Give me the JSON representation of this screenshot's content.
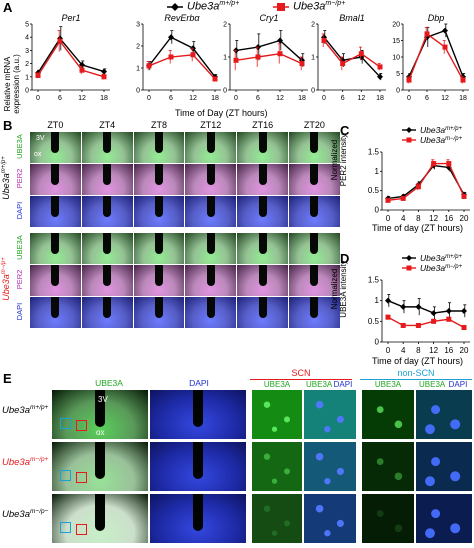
{
  "legend_top": {
    "items": [
      {
        "label": "Ube3a",
        "sup": "m+/p+",
        "color": "#000000",
        "marker": "diamond"
      },
      {
        "label": "Ube3a",
        "sup": "m−/p+",
        "color": "#e41a1c",
        "marker": "square"
      }
    ]
  },
  "panel_letters": {
    "A": "A",
    "B": "B",
    "C": "C",
    "D": "D",
    "E": "E"
  },
  "panel_a": {
    "ylabel_line1": "Relative mRNA",
    "ylabel_line2": "expression (a.u.)",
    "xlabel": "Time of Day (ZT hours)"
  },
  "panel_b": {
    "columns": [
      "ZT0",
      "ZT4",
      "ZT8",
      "ZT12",
      "ZT16",
      "ZT20"
    ],
    "row_labels": [
      "UBE3A",
      "PER2",
      "DAPI"
    ],
    "genotypes": [
      {
        "name": "Ube3a",
        "sup": "m+/p+",
        "color": "#000000"
      },
      {
        "name": "Ube3a",
        "sup": "m−/p+",
        "color": "#e41a1c"
      }
    ],
    "annot_3v": "3V",
    "annot_ox": "ox"
  },
  "panel_c": {
    "ylabel_line1": "Normalized",
    "ylabel_line2": "PER2 intensity",
    "xlabel": "Time of day (ZT hours)"
  },
  "panel_d": {
    "ylabel_line1": "Normalized",
    "ylabel_line2": "UBE3A intensity",
    "xlabel": "Time of day (ZT hours)"
  },
  "panel_e": {
    "col_headers": [
      "UBE3A",
      "DAPI"
    ],
    "group_scn": "SCN",
    "group_nonscn": "non-SCN",
    "sub_headers": [
      "UBE3A",
      "UBE3A",
      "DAPI",
      "UBE3A",
      "UBE3A",
      "DAPI"
    ],
    "rows": [
      {
        "name": "Ube3a",
        "sup": "m+/p+",
        "color": "#000000"
      },
      {
        "name": "Ube3a",
        "sup": "m−/p+",
        "color": "#e41a1c"
      },
      {
        "name": "Ube3a",
        "sup": "m−/p−",
        "color": "#000000"
      }
    ],
    "annot_3v": "3V",
    "annot_ox": "ox",
    "scn_color": "#e41a1c",
    "nonscn_color": "#1ba1d6"
  },
  "colors": {
    "wt": "#000000",
    "mut": "#e41a1c",
    "green": "#1fa51f",
    "magenta": "#b12ab1",
    "blue": "#1f2fd1"
  },
  "chart_data": [
    {
      "type": "line",
      "title": "Per1",
      "x": [
        0,
        6,
        12,
        18
      ],
      "ylim": [
        0,
        5
      ],
      "yticks": [
        0,
        1,
        2,
        3,
        4,
        5
      ],
      "series": [
        {
          "name": "Ube3a m+/p+",
          "values": [
            1.3,
            3.9,
            1.9,
            1.4
          ],
          "err": [
            0.2,
            0.9,
            0.3,
            0.2
          ]
        },
        {
          "name": "Ube3a m−/p+",
          "values": [
            1.1,
            3.7,
            1.5,
            1.0
          ],
          "err": [
            0.2,
            0.8,
            0.3,
            0.2
          ]
        }
      ]
    },
    {
      "type": "line",
      "title": "RevErbα",
      "x": [
        0,
        6,
        12,
        18
      ],
      "ylim": [
        0,
        3
      ],
      "yticks": [
        0,
        1,
        2,
        3
      ],
      "series": [
        {
          "name": "Ube3a m+/p+",
          "values": [
            1.1,
            2.4,
            1.9,
            0.6
          ],
          "err": [
            0.2,
            0.3,
            0.3,
            0.1
          ]
        },
        {
          "name": "Ube3a m−/p+",
          "values": [
            1.1,
            1.5,
            1.6,
            0.5
          ],
          "err": [
            0.2,
            0.3,
            0.3,
            0.1
          ]
        }
      ]
    },
    {
      "type": "line",
      "title": "Cry1",
      "x": [
        0,
        6,
        12,
        18
      ],
      "ylim": [
        0,
        2
      ],
      "yticks": [
        0,
        1,
        2
      ],
      "series": [
        {
          "name": "Ube3a m+/p+",
          "values": [
            1.2,
            1.3,
            1.5,
            0.9
          ],
          "err": [
            0.3,
            0.4,
            0.3,
            0.2
          ]
        },
        {
          "name": "Ube3a m−/p+",
          "values": [
            0.9,
            1.0,
            1.1,
            0.8
          ],
          "err": [
            0.3,
            0.3,
            0.3,
            0.2
          ]
        }
      ]
    },
    {
      "type": "line",
      "title": "Bmal1",
      "x": [
        0,
        6,
        12,
        18
      ],
      "ylim": [
        0,
        2
      ],
      "yticks": [
        0,
        1,
        2
      ],
      "series": [
        {
          "name": "Ube3a m+/p+",
          "values": [
            1.6,
            0.9,
            1.0,
            0.4
          ],
          "err": [
            0.2,
            0.2,
            0.2,
            0.1
          ]
        },
        {
          "name": "Ube3a m−/p+",
          "values": [
            1.5,
            0.8,
            1.1,
            0.7
          ],
          "err": [
            0.2,
            0.2,
            0.2,
            0.1
          ]
        }
      ]
    },
    {
      "type": "line",
      "title": "Dbp",
      "x": [
        0,
        6,
        12,
        18
      ],
      "ylim": [
        0,
        20
      ],
      "yticks": [
        0,
        5,
        10,
        15,
        20
      ],
      "series": [
        {
          "name": "Ube3a m+/p+",
          "values": [
            4,
            16,
            18,
            4
          ],
          "err": [
            1,
            3,
            2,
            1
          ]
        },
        {
          "name": "Ube3a m−/p+",
          "values": [
            3,
            17,
            13,
            3
          ],
          "err": [
            1,
            2,
            2,
            1
          ]
        }
      ]
    },
    {
      "type": "line",
      "title": "",
      "x": [
        0,
        4,
        8,
        12,
        16,
        20
      ],
      "ylim": [
        0,
        1.5
      ],
      "yticks": [
        0,
        0.5,
        1.0,
        1.5
      ],
      "series": [
        {
          "name": "Ube3a m+/p+",
          "values": [
            0.3,
            0.35,
            0.65,
            1.15,
            1.1,
            0.4
          ],
          "err": [
            0.05,
            0.05,
            0.08,
            0.1,
            0.1,
            0.05
          ]
        },
        {
          "name": "Ube3a m−/p+",
          "values": [
            0.25,
            0.3,
            0.6,
            1.2,
            1.2,
            0.35
          ],
          "err": [
            0.05,
            0.05,
            0.08,
            0.1,
            0.1,
            0.05
          ]
        }
      ]
    },
    {
      "type": "line",
      "title": "",
      "x": [
        0,
        4,
        8,
        12,
        16,
        20
      ],
      "ylim": [
        0,
        1.5
      ],
      "yticks": [
        0,
        0.5,
        1.0,
        1.5
      ],
      "series": [
        {
          "name": "Ube3a m+/p+",
          "values": [
            1.0,
            0.85,
            0.85,
            0.7,
            0.75,
            0.75
          ],
          "err": [
            0.15,
            0.15,
            0.2,
            0.15,
            0.2,
            0.15
          ]
        },
        {
          "name": "Ube3a m−/p+",
          "values": [
            0.6,
            0.4,
            0.4,
            0.5,
            0.55,
            0.35
          ],
          "err": [
            0.05,
            0.05,
            0.05,
            0.05,
            0.05,
            0.05
          ]
        }
      ]
    }
  ]
}
